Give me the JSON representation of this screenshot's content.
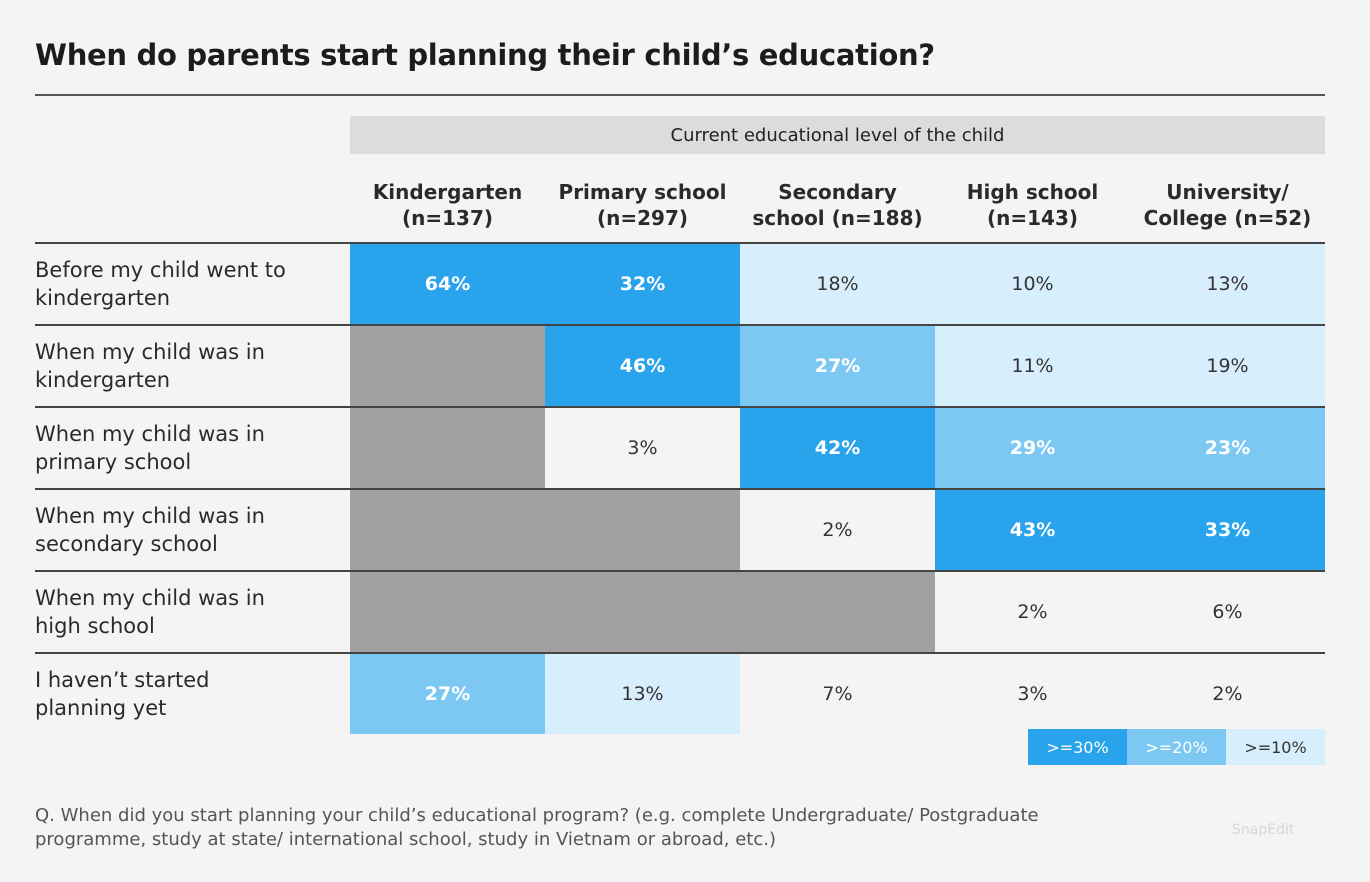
{
  "title": "When do parents start planning their child’s education?",
  "group_header": "Current educational level of the child",
  "colors": {
    "high": "#29a3ec",
    "mid": "#7cc8f2",
    "low": "#d7eefc",
    "none": "#f4f4f4",
    "na": "#a1a1a1",
    "dark_text": "#333333",
    "light_text": "#ffffff"
  },
  "legend": [
    {
      "label": ">=30%",
      "level": "high"
    },
    {
      "label": ">=20%",
      "level": "mid"
    },
    {
      "label": ">=10%",
      "level": "low"
    }
  ],
  "footnote": "Q. When did you start planning your child’s educational program? (e.g. complete Undergraduate/ Postgraduate programme, study at state/ international school, study in Vietnam or abroad, etc.)",
  "watermark": "SnapEdit",
  "chart_data": {
    "type": "table",
    "title": "When do parents start planning their child’s education?",
    "column_group": "Current educational level of the child",
    "columns": [
      "Kindergarten\n(n=137)",
      "Primary school\n(n=297)",
      "Secondary\nschool (n=188)",
      "High school\n(n=143)",
      "University/\nCollege (n=52)"
    ],
    "rows": [
      {
        "label": "Before my child went to\nkindergarten",
        "values": [
          "64%",
          "32%",
          "18%",
          "10%",
          "13%"
        ]
      },
      {
        "label": "When my child was in\nkindergarten",
        "values": [
          null,
          "46%",
          "27%",
          "11%",
          "19%"
        ]
      },
      {
        "label": "When my child was in\nprimary school",
        "values": [
          null,
          "3%",
          "42%",
          "29%",
          "23%"
        ]
      },
      {
        "label": "When my child was in\nsecondary school",
        "values": [
          null,
          null,
          "2%",
          "43%",
          "33%"
        ]
      },
      {
        "label": "When my child was in\nhigh school",
        "values": [
          null,
          null,
          null,
          "2%",
          "6%"
        ]
      },
      {
        "label": "I haven’t started\nplanning yet",
        "values": [
          "27%",
          "13%",
          "7%",
          "3%",
          "2%"
        ]
      }
    ]
  }
}
